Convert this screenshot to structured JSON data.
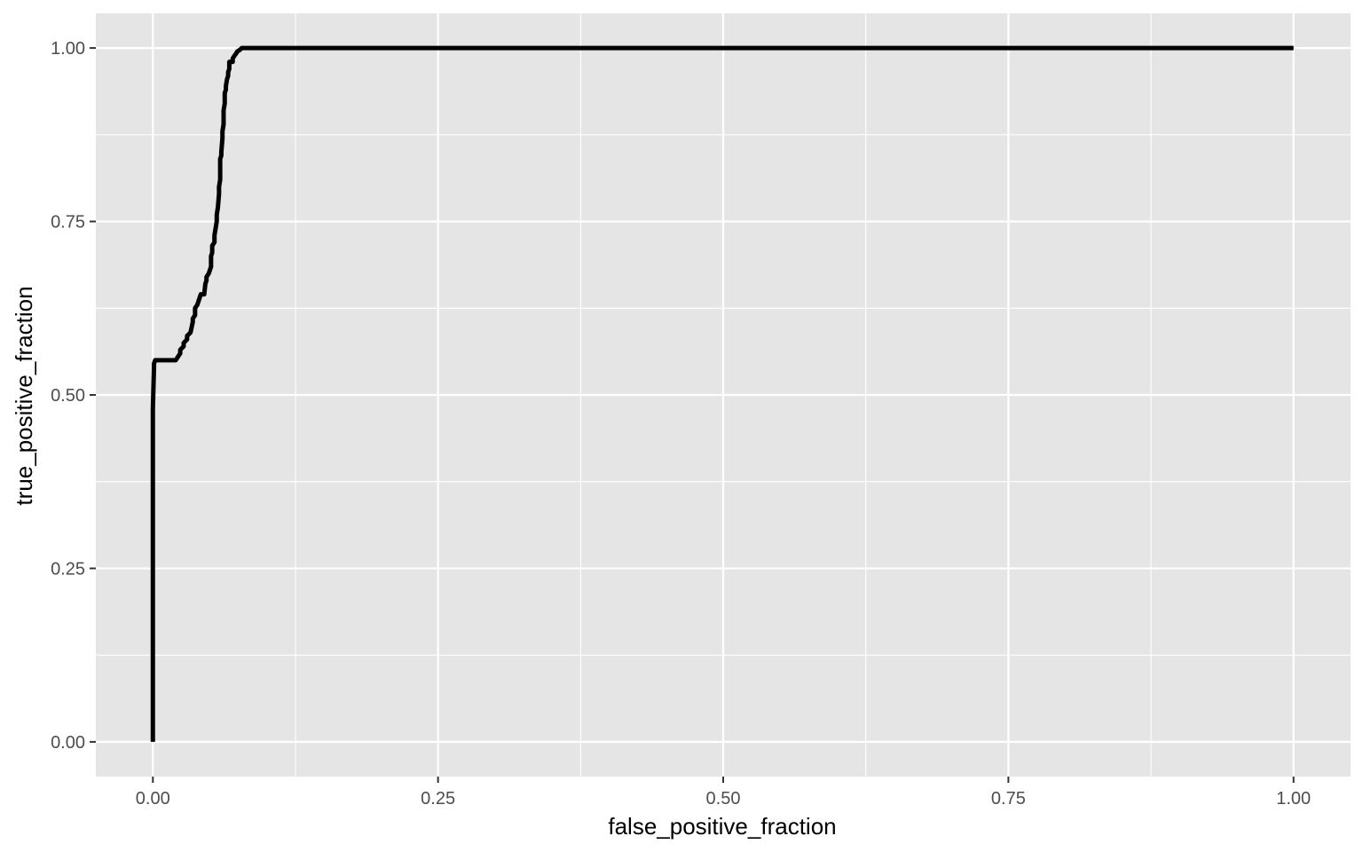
{
  "chart_data": {
    "type": "line",
    "title": "",
    "xlabel": "false_positive_fraction",
    "ylabel": "true_positive_fraction",
    "xlim": [
      -0.05,
      1.05
    ],
    "ylim": [
      -0.05,
      1.05
    ],
    "x_ticks": [
      0,
      0.25,
      0.5,
      0.75,
      1
    ],
    "x_tick_labels": [
      "0.00",
      "0.25",
      "0.50",
      "0.75",
      "1.00"
    ],
    "y_ticks": [
      0,
      0.25,
      0.5,
      0.75,
      1
    ],
    "y_tick_labels": [
      "0.00",
      "0.25",
      "0.50",
      "0.75",
      "1.00"
    ],
    "grid": true,
    "legend": "none",
    "colors": {
      "panel_background": "#e5e5e5",
      "grid": "#ffffff",
      "line": "#000000",
      "tick_text": "#4d4d4d"
    },
    "series": [
      {
        "x": [
          0,
          0,
          0.001,
          0.001,
          0.002,
          0.002,
          0.02,
          0.022,
          0.024,
          0.024,
          0.027,
          0.027,
          0.03,
          0.03,
          0.033,
          0.035,
          0.035,
          0.037,
          0.037,
          0.039,
          0.04,
          0.041,
          0.042,
          0.045,
          0.046,
          0.047,
          0.047,
          0.049,
          0.05,
          0.051,
          0.051,
          0.052,
          0.052,
          0.054,
          0.054,
          0.056,
          0.056,
          0.057,
          0.058,
          0.058,
          0.059,
          0.059,
          0.06,
          0.06,
          0.061,
          0.061,
          0.062,
          0.062,
          0.063,
          0.063,
          0.064,
          0.064,
          0.065,
          0.066,
          0.066,
          0.067,
          0.067,
          0.07,
          0.07,
          0.072,
          0.073,
          0.074,
          0.076,
          0.078,
          0.08,
          1
        ],
        "y": [
          0,
          0.48,
          0.54,
          0.545,
          0.55,
          0.55,
          0.55,
          0.555,
          0.56,
          0.565,
          0.57,
          0.575,
          0.58,
          0.585,
          0.59,
          0.605,
          0.61,
          0.615,
          0.625,
          0.63,
          0.635,
          0.64,
          0.645,
          0.645,
          0.66,
          0.665,
          0.67,
          0.675,
          0.68,
          0.685,
          0.7,
          0.705,
          0.715,
          0.72,
          0.73,
          0.75,
          0.76,
          0.77,
          0.79,
          0.8,
          0.81,
          0.84,
          0.845,
          0.85,
          0.87,
          0.88,
          0.89,
          0.91,
          0.92,
          0.935,
          0.94,
          0.945,
          0.955,
          0.96,
          0.965,
          0.97,
          0.98,
          0.98,
          0.985,
          0.99,
          0.992,
          0.995,
          0.997,
          1,
          1,
          1
        ]
      }
    ]
  }
}
